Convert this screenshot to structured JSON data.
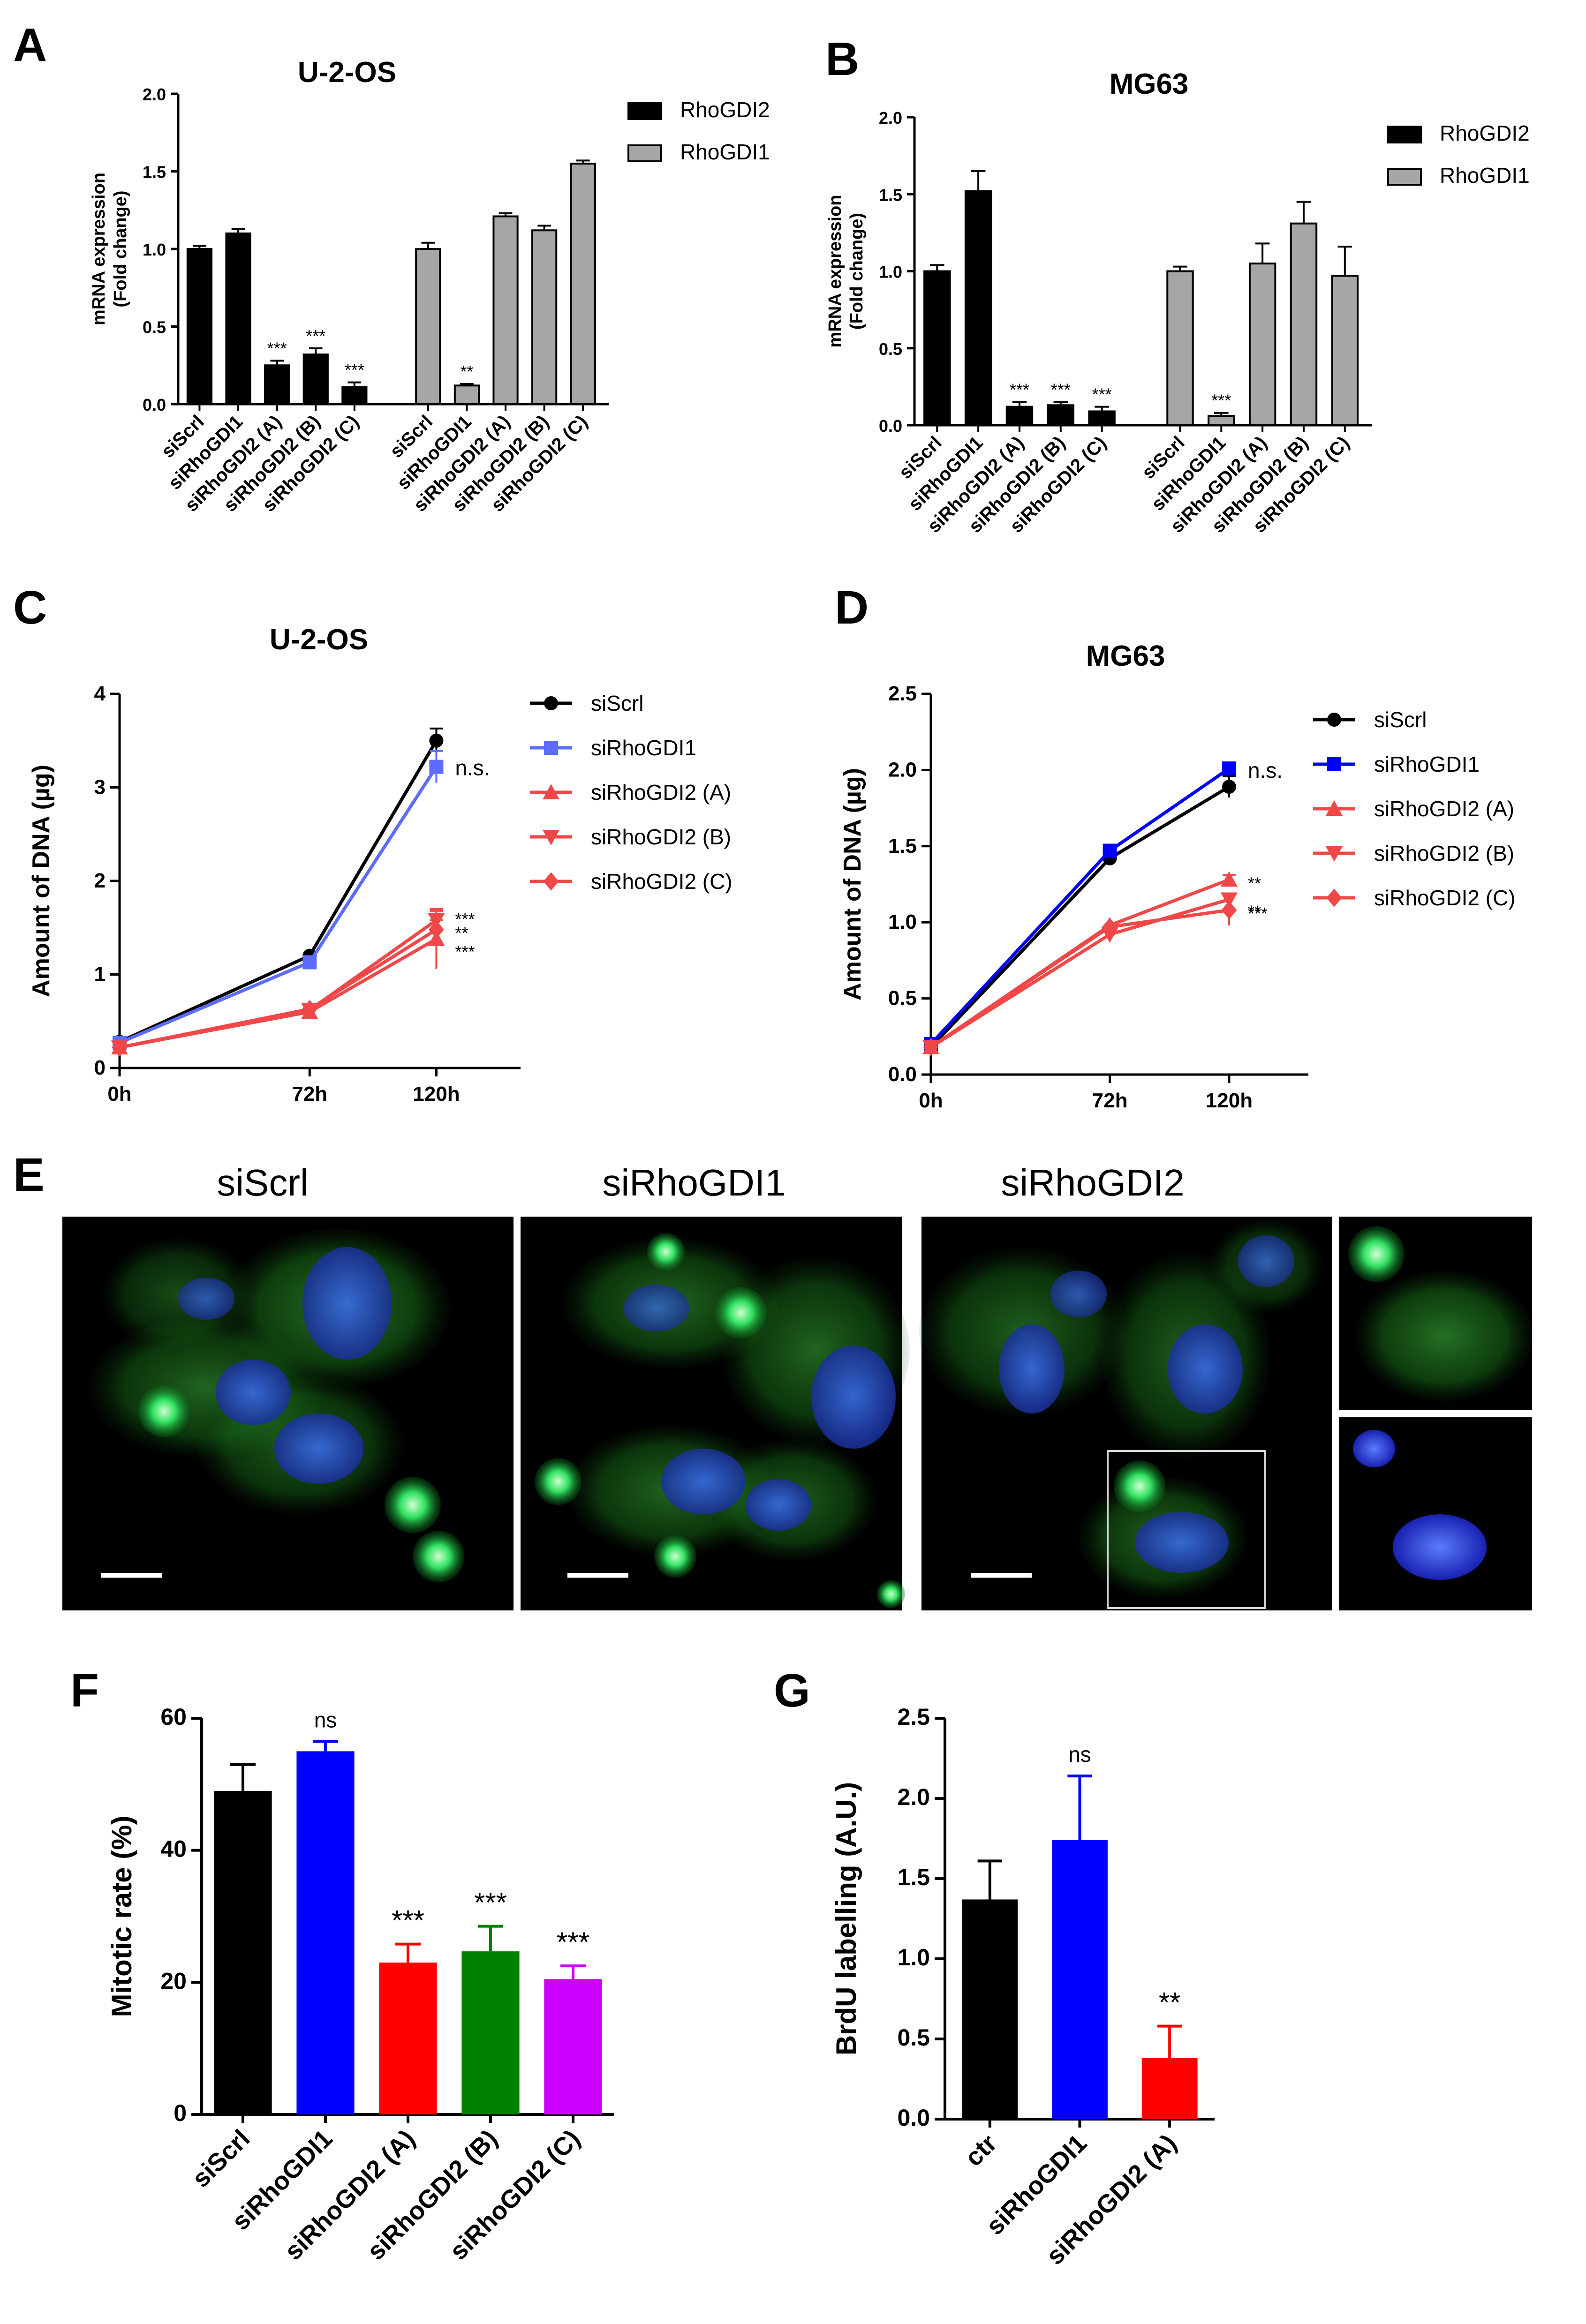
{
  "panels": {
    "A": "A",
    "B": "B",
    "C": "C",
    "D": "D",
    "E": "E",
    "F": "F",
    "G": "G"
  },
  "colors": {
    "black": "#000000",
    "gray": "#a6a6a6",
    "blue": "#0000ff",
    "lightblue": "#5b6cff",
    "red": "#ff0000",
    "lightred": "#f04848",
    "green": "#008000",
    "purple": "#cc00ff",
    "green_cyto": "#20c020",
    "blue_nuc": "#2a4fd0"
  },
  "chart_data": [
    {
      "id": "A",
      "type": "bar",
      "title": "U-2-OS",
      "ylabel": "mRNA expression\n(Fold change)",
      "ylim": [
        0,
        2.0
      ],
      "yticks": [
        "0.0",
        "0.5",
        "1.0",
        "1.5",
        "2.0"
      ],
      "categories": [
        "siScrl",
        "siRhoGDI1",
        "siRhoGDI2 (A)",
        "siRhoGDI2 (B)",
        "siRhoGDI2 (C)"
      ],
      "legend_position": "top-right",
      "series": [
        {
          "name": "RhoGDI2",
          "color": "#000000",
          "values": [
            1.0,
            1.1,
            0.25,
            0.32,
            0.11
          ],
          "errors": [
            0.02,
            0.03,
            0.03,
            0.04,
            0.03
          ],
          "sig": [
            "",
            "",
            "***",
            "***",
            "***"
          ]
        },
        {
          "name": "RhoGDI1",
          "color": "#a6a6a6",
          "values": [
            1.0,
            0.12,
            1.21,
            1.12,
            1.55
          ],
          "errors": [
            0.04,
            0.01,
            0.02,
            0.03,
            0.02
          ],
          "sig": [
            "",
            "**",
            "",
            "",
            ""
          ]
        }
      ]
    },
    {
      "id": "B",
      "type": "bar",
      "title": "MG63",
      "ylabel": "mRNA expression\n(Fold change)",
      "ylim": [
        0,
        2.0
      ],
      "yticks": [
        "0.0",
        "0.5",
        "1.0",
        "1.5",
        "2.0"
      ],
      "categories": [
        "siScrl",
        "siRhoGDI1",
        "siRhoGDI2 (A)",
        "siRhoGDI2 (B)",
        "siRhoGDI2 (C)"
      ],
      "legend_position": "top-right",
      "series": [
        {
          "name": "RhoGDI2",
          "color": "#000000",
          "values": [
            1.0,
            1.52,
            0.12,
            0.13,
            0.09
          ],
          "errors": [
            0.04,
            0.13,
            0.03,
            0.02,
            0.03
          ],
          "sig": [
            "",
            "",
            "***",
            "***",
            "***"
          ]
        },
        {
          "name": "RhoGDI1",
          "color": "#a6a6a6",
          "values": [
            1.0,
            0.06,
            1.05,
            1.31,
            0.97
          ],
          "errors": [
            0.03,
            0.02,
            0.13,
            0.14,
            0.19
          ],
          "sig": [
            "",
            "***",
            "",
            "",
            ""
          ]
        }
      ]
    },
    {
      "id": "C",
      "type": "line",
      "title": "U-2-OS",
      "xlabel": "",
      "ylabel": "Amount of DNA (µg)",
      "ylim": [
        0,
        4
      ],
      "yticks": [
        "0",
        "1",
        "2",
        "3",
        "4"
      ],
      "x": [
        0,
        72,
        120
      ],
      "xticks": [
        "0h",
        "72h",
        "120h"
      ],
      "legend_position": "right",
      "series": [
        {
          "name": "siScrl",
          "color": "#000000",
          "marker": "circle",
          "values": [
            0.28,
            1.2,
            3.5
          ],
          "err_last": 0.13,
          "sig": ""
        },
        {
          "name": "siRhoGDI1",
          "color": "#5b6cff",
          "marker": "square",
          "values": [
            0.27,
            1.13,
            3.22
          ],
          "err_last": 0.17,
          "sig": "n.s."
        },
        {
          "name": "siRhoGDI2 (A)",
          "color": "#f04848",
          "marker": "triangle-up",
          "values": [
            0.22,
            0.6,
            1.38
          ],
          "err_last": 0.32,
          "sig": "***"
        },
        {
          "name": "siRhoGDI2 (B)",
          "color": "#f04848",
          "marker": "triangle-down",
          "values": [
            0.22,
            0.62,
            1.58
          ],
          "err_last": 0.1,
          "sig": "***"
        },
        {
          "name": "siRhoGDI2 (C)",
          "color": "#f04848",
          "marker": "diamond",
          "values": [
            0.22,
            0.63,
            1.48
          ],
          "err_last": 0.1,
          "sig": "**"
        }
      ]
    },
    {
      "id": "D",
      "type": "line",
      "title": "MG63",
      "xlabel": "",
      "ylabel": "Amount of DNA (µg)",
      "ylim": [
        0,
        2.5
      ],
      "yticks": [
        "0.0",
        "0.5",
        "1.0",
        "1.5",
        "2.0",
        "2.5"
      ],
      "x": [
        0,
        72,
        120
      ],
      "xticks": [
        "0h",
        "72h",
        "120h"
      ],
      "legend_position": "right",
      "series": [
        {
          "name": "siScrl",
          "color": "#000000",
          "marker": "circle",
          "values": [
            0.18,
            1.42,
            1.89
          ],
          "err_last": 0.07,
          "sig": ""
        },
        {
          "name": "siRhoGDI1",
          "color": "#0000ff",
          "marker": "square",
          "values": [
            0.2,
            1.47,
            2.01
          ],
          "err_last": 0.02,
          "sig": "n.s."
        },
        {
          "name": "siRhoGDI2 (A)",
          "color": "#f04848",
          "marker": "triangle-up",
          "values": [
            0.18,
            0.98,
            1.28
          ],
          "err_last": 0.03,
          "sig": "**"
        },
        {
          "name": "siRhoGDI2 (B)",
          "color": "#f04848",
          "marker": "triangle-down",
          "values": [
            0.18,
            0.92,
            1.15
          ],
          "err_last": 0.03,
          "sig": "**"
        },
        {
          "name": "siRhoGDI2 (C)",
          "color": "#f04848",
          "marker": "diamond",
          "values": [
            0.18,
            0.97,
            1.08
          ],
          "err_last": 0.1,
          "sig": "***"
        }
      ]
    },
    {
      "id": "F",
      "type": "bar",
      "title": "",
      "ylabel": "Mitotic rate (%)",
      "ylim": [
        0,
        60
      ],
      "yticks": [
        "0",
        "20",
        "40",
        "60"
      ],
      "categories": [
        "siScrl",
        "siRhoGDI1",
        "siRhoGDI2 (A)",
        "siRhoGDI2 (B)",
        "siRhoGDI2 (C)"
      ],
      "values": [
        49,
        55,
        23,
        24.7,
        20.5
      ],
      "errors": [
        4.0,
        1.5,
        2.8,
        3.8,
        2.0
      ],
      "colors": [
        "#000000",
        "#0000ff",
        "#ff0000",
        "#008000",
        "#cc00ff"
      ],
      "sig": [
        "",
        "ns",
        "***",
        "***",
        "***"
      ]
    },
    {
      "id": "G",
      "type": "bar",
      "title": "",
      "ylabel": "BrdU labelling (A.U.)",
      "ylim": [
        0,
        2.5
      ],
      "yticks": [
        "0.0",
        "0.5",
        "1.0",
        "1.5",
        "2.0",
        "2.5"
      ],
      "categories": [
        "ctr",
        "siRhoGDI1",
        "siRhoGDI2 (A)"
      ],
      "values": [
        1.37,
        1.74,
        0.38
      ],
      "errors": [
        0.24,
        0.4,
        0.2
      ],
      "colors": [
        "#000000",
        "#0000ff",
        "#ff0000"
      ],
      "sig": [
        "",
        "ns",
        "**"
      ]
    }
  ],
  "micrographs": {
    "titles": [
      "siScrl",
      "siRhoGDI1",
      "siRhoGDI2"
    ]
  }
}
